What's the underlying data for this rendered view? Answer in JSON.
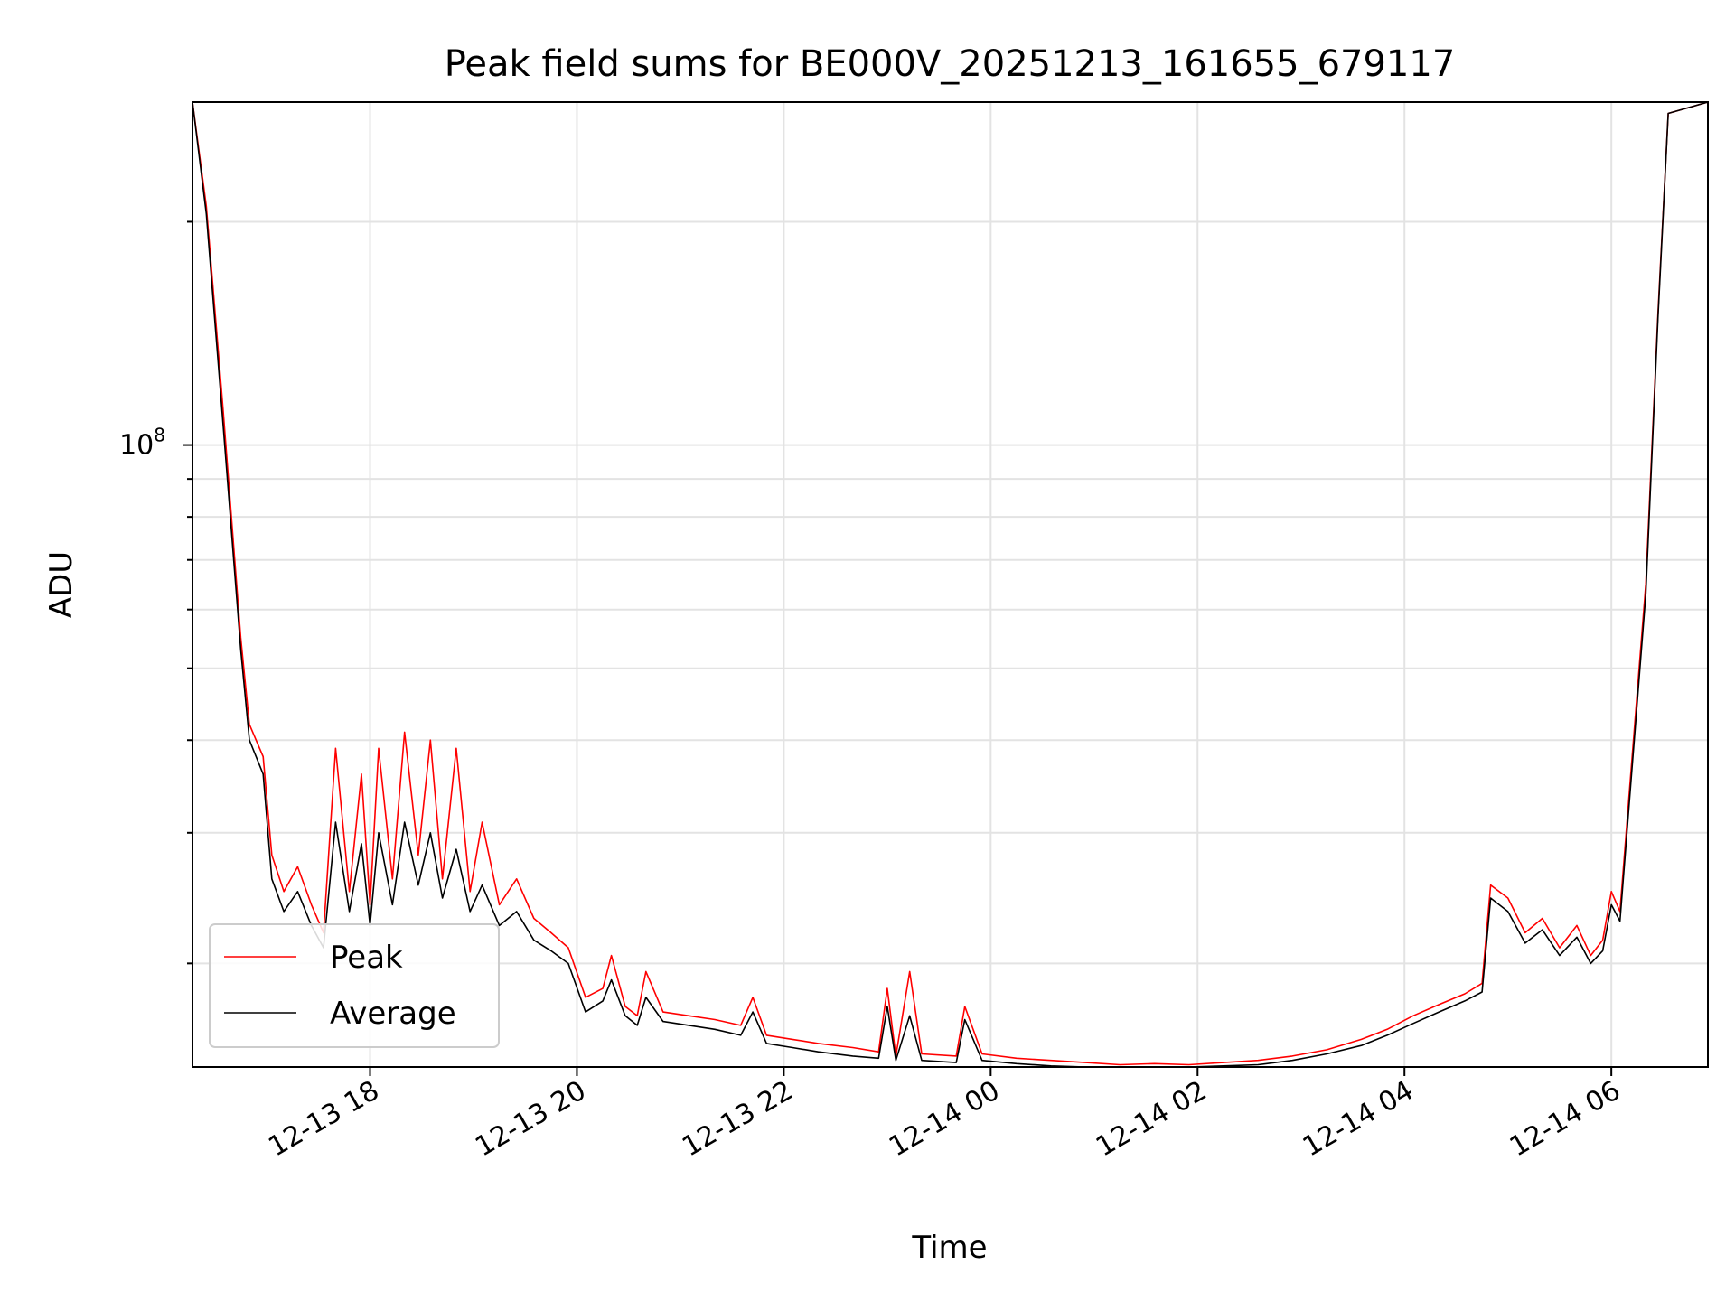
{
  "chart_data": {
    "type": "line",
    "title": "Peak field sums for BE000V_20251213_161655_679117",
    "xlabel": "Time",
    "ylabel": "ADU",
    "x_ticks": [
      "12-13 18",
      "12-13 20",
      "12-13 22",
      "12-14 00",
      "12-14 02",
      "12-14 04",
      "12-14 06"
    ],
    "y_tick_major_label": "10",
    "y_tick_major_exponent": "8",
    "y_scale": "log",
    "xlim": [
      "2025-12-13 16:17",
      "2025-12-14 06:56"
    ],
    "ylim": [
      14500000,
      290000000
    ],
    "grid": true,
    "legend_position": "lower-left",
    "series": [
      {
        "name": "Peak",
        "color": "#ff0000",
        "points": [
          [
            "2025-12-13 16:17",
            290000000
          ],
          [
            "2025-12-13 16:25",
            210000000
          ],
          [
            "2025-12-13 16:35",
            110000000
          ],
          [
            "2025-12-13 16:45",
            55000000
          ],
          [
            "2025-12-13 16:50",
            42000000
          ],
          [
            "2025-12-13 16:58",
            38000000
          ],
          [
            "2025-12-13 17:03",
            28000000
          ],
          [
            "2025-12-13 17:10",
            25000000
          ],
          [
            "2025-12-13 17:18",
            27000000
          ],
          [
            "2025-12-13 17:26",
            24000000
          ],
          [
            "2025-12-13 17:33",
            22000000
          ],
          [
            "2025-12-13 17:40",
            39000000
          ],
          [
            "2025-12-13 17:48",
            25000000
          ],
          [
            "2025-12-13 17:55",
            36000000
          ],
          [
            "2025-12-13 18:00",
            24000000
          ],
          [
            "2025-12-13 18:05",
            39000000
          ],
          [
            "2025-12-13 18:13",
            26000000
          ],
          [
            "2025-12-13 18:20",
            41000000
          ],
          [
            "2025-12-13 18:28",
            28000000
          ],
          [
            "2025-12-13 18:35",
            40000000
          ],
          [
            "2025-12-13 18:42",
            26000000
          ],
          [
            "2025-12-13 18:50",
            39000000
          ],
          [
            "2025-12-13 18:58",
            25000000
          ],
          [
            "2025-12-13 19:05",
            31000000
          ],
          [
            "2025-12-13 19:15",
            24000000
          ],
          [
            "2025-12-13 19:25",
            26000000
          ],
          [
            "2025-12-13 19:35",
            23000000
          ],
          [
            "2025-12-13 19:45",
            22000000
          ],
          [
            "2025-12-13 19:55",
            21000000
          ],
          [
            "2025-12-13 20:05",
            18000000
          ],
          [
            "2025-12-13 20:15",
            18500000
          ],
          [
            "2025-12-13 20:20",
            20500000
          ],
          [
            "2025-12-13 20:28",
            17500000
          ],
          [
            "2025-12-13 20:35",
            17000000
          ],
          [
            "2025-12-13 20:40",
            19500000
          ],
          [
            "2025-12-13 20:50",
            17200000
          ],
          [
            "2025-12-13 21:05",
            17000000
          ],
          [
            "2025-12-13 21:20",
            16800000
          ],
          [
            "2025-12-13 21:35",
            16500000
          ],
          [
            "2025-12-13 21:42",
            18000000
          ],
          [
            "2025-12-13 21:50",
            16000000
          ],
          [
            "2025-12-13 22:05",
            15800000
          ],
          [
            "2025-12-13 22:20",
            15600000
          ],
          [
            "2025-12-13 22:40",
            15400000
          ],
          [
            "2025-12-13 22:55",
            15200000
          ],
          [
            "2025-12-13 23:00",
            18500000
          ],
          [
            "2025-12-13 23:05",
            15000000
          ],
          [
            "2025-12-13 23:13",
            19500000
          ],
          [
            "2025-12-13 23:20",
            15100000
          ],
          [
            "2025-12-13 23:40",
            15000000
          ],
          [
            "2025-12-13 23:45",
            17500000
          ],
          [
            "2025-12-13 23:55",
            15100000
          ],
          [
            "2025-12-14 00:15",
            14900000
          ],
          [
            "2025-12-14 00:35",
            14800000
          ],
          [
            "2025-12-14 00:55",
            14700000
          ],
          [
            "2025-12-14 01:15",
            14600000
          ],
          [
            "2025-12-14 01:35",
            14650000
          ],
          [
            "2025-12-14 01:55",
            14600000
          ],
          [
            "2025-12-14 02:15",
            14700000
          ],
          [
            "2025-12-14 02:35",
            14800000
          ],
          [
            "2025-12-14 02:55",
            15000000
          ],
          [
            "2025-12-14 03:15",
            15300000
          ],
          [
            "2025-12-14 03:35",
            15800000
          ],
          [
            "2025-12-14 03:50",
            16300000
          ],
          [
            "2025-12-14 04:05",
            17000000
          ],
          [
            "2025-12-14 04:20",
            17600000
          ],
          [
            "2025-12-14 04:35",
            18200000
          ],
          [
            "2025-12-14 04:45",
            18800000
          ],
          [
            "2025-12-14 04:50",
            25500000
          ],
          [
            "2025-12-14 05:00",
            24500000
          ],
          [
            "2025-12-14 05:10",
            22000000
          ],
          [
            "2025-12-14 05:20",
            23000000
          ],
          [
            "2025-12-14 05:30",
            21000000
          ],
          [
            "2025-12-14 05:40",
            22500000
          ],
          [
            "2025-12-14 05:48",
            20500000
          ],
          [
            "2025-12-14 05:55",
            21500000
          ],
          [
            "2025-12-14 06:00",
            25000000
          ],
          [
            "2025-12-14 06:05",
            23500000
          ],
          [
            "2025-12-14 06:10",
            33000000
          ],
          [
            "2025-12-14 06:20",
            65000000
          ],
          [
            "2025-12-14 06:27",
            150000000
          ],
          [
            "2025-12-14 06:33",
            280000000
          ],
          [
            "2025-12-14 06:56",
            290000000
          ]
        ]
      },
      {
        "name": "Average",
        "color": "#000000",
        "points": [
          [
            "2025-12-13 16:17",
            290000000
          ],
          [
            "2025-12-13 16:25",
            205000000
          ],
          [
            "2025-12-13 16:35",
            105000000
          ],
          [
            "2025-12-13 16:45",
            53000000
          ],
          [
            "2025-12-13 16:50",
            40000000
          ],
          [
            "2025-12-13 16:58",
            36000000
          ],
          [
            "2025-12-13 17:03",
            26000000
          ],
          [
            "2025-12-13 17:10",
            23500000
          ],
          [
            "2025-12-13 17:18",
            25000000
          ],
          [
            "2025-12-13 17:26",
            22500000
          ],
          [
            "2025-12-13 17:33",
            21000000
          ],
          [
            "2025-12-13 17:40",
            31000000
          ],
          [
            "2025-12-13 17:48",
            23500000
          ],
          [
            "2025-12-13 17:55",
            29000000
          ],
          [
            "2025-12-13 18:00",
            22500000
          ],
          [
            "2025-12-13 18:05",
            30000000
          ],
          [
            "2025-12-13 18:13",
            24000000
          ],
          [
            "2025-12-13 18:20",
            31000000
          ],
          [
            "2025-12-13 18:28",
            25500000
          ],
          [
            "2025-12-13 18:35",
            30000000
          ],
          [
            "2025-12-13 18:42",
            24500000
          ],
          [
            "2025-12-13 18:50",
            28500000
          ],
          [
            "2025-12-13 18:58",
            23500000
          ],
          [
            "2025-12-13 19:05",
            25500000
          ],
          [
            "2025-12-13 19:15",
            22500000
          ],
          [
            "2025-12-13 19:25",
            23500000
          ],
          [
            "2025-12-13 19:35",
            21500000
          ],
          [
            "2025-12-13 19:45",
            20800000
          ],
          [
            "2025-12-13 19:55",
            20000000
          ],
          [
            "2025-12-13 20:05",
            17200000
          ],
          [
            "2025-12-13 20:15",
            17800000
          ],
          [
            "2025-12-13 20:20",
            19000000
          ],
          [
            "2025-12-13 20:28",
            17000000
          ],
          [
            "2025-12-13 20:35",
            16500000
          ],
          [
            "2025-12-13 20:40",
            18000000
          ],
          [
            "2025-12-13 20:50",
            16700000
          ],
          [
            "2025-12-13 21:05",
            16500000
          ],
          [
            "2025-12-13 21:20",
            16300000
          ],
          [
            "2025-12-13 21:35",
            16000000
          ],
          [
            "2025-12-13 21:42",
            17200000
          ],
          [
            "2025-12-13 21:50",
            15600000
          ],
          [
            "2025-12-13 22:05",
            15400000
          ],
          [
            "2025-12-13 22:20",
            15200000
          ],
          [
            "2025-12-13 22:40",
            15000000
          ],
          [
            "2025-12-13 22:55",
            14900000
          ],
          [
            "2025-12-13 23:00",
            17500000
          ],
          [
            "2025-12-13 23:05",
            14800000
          ],
          [
            "2025-12-13 23:13",
            17000000
          ],
          [
            "2025-12-13 23:20",
            14800000
          ],
          [
            "2025-12-13 23:40",
            14700000
          ],
          [
            "2025-12-13 23:45",
            16800000
          ],
          [
            "2025-12-13 23:55",
            14800000
          ],
          [
            "2025-12-14 00:15",
            14650000
          ],
          [
            "2025-12-14 00:35",
            14550000
          ],
          [
            "2025-12-14 00:55",
            14500000
          ],
          [
            "2025-12-14 01:15",
            14500000
          ],
          [
            "2025-12-14 01:35",
            14500000
          ],
          [
            "2025-12-14 01:55",
            14500000
          ],
          [
            "2025-12-14 02:15",
            14550000
          ],
          [
            "2025-12-14 02:35",
            14600000
          ],
          [
            "2025-12-14 02:55",
            14800000
          ],
          [
            "2025-12-14 03:15",
            15100000
          ],
          [
            "2025-12-14 03:35",
            15500000
          ],
          [
            "2025-12-14 03:50",
            16000000
          ],
          [
            "2025-12-14 04:05",
            16600000
          ],
          [
            "2025-12-14 04:20",
            17200000
          ],
          [
            "2025-12-14 04:35",
            17800000
          ],
          [
            "2025-12-14 04:45",
            18300000
          ],
          [
            "2025-12-14 04:50",
            24500000
          ],
          [
            "2025-12-14 05:00",
            23500000
          ],
          [
            "2025-12-14 05:10",
            21300000
          ],
          [
            "2025-12-14 05:20",
            22200000
          ],
          [
            "2025-12-14 05:30",
            20500000
          ],
          [
            "2025-12-14 05:40",
            21700000
          ],
          [
            "2025-12-14 05:48",
            20000000
          ],
          [
            "2025-12-14 05:55",
            20800000
          ],
          [
            "2025-12-14 06:00",
            24000000
          ],
          [
            "2025-12-14 06:05",
            22800000
          ],
          [
            "2025-12-14 06:10",
            32000000
          ],
          [
            "2025-12-14 06:20",
            63000000
          ],
          [
            "2025-12-14 06:27",
            148000000
          ],
          [
            "2025-12-14 06:33",
            280000000
          ],
          [
            "2025-12-14 06:56",
            290000000
          ]
        ]
      }
    ]
  }
}
